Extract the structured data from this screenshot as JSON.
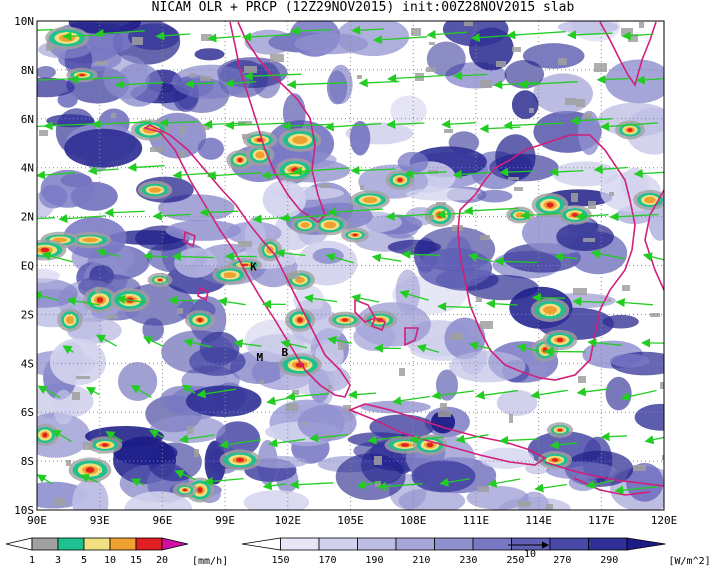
{
  "title": "NICAM OLR + PRCP (12Z29NOV2015) init:00Z28NOV2015 slab",
  "map": {
    "lat_labels": [
      "10N",
      "8N",
      "6N",
      "4N",
      "2N",
      "EQ",
      "2S",
      "4S",
      "6S",
      "8S",
      "10S"
    ],
    "lon_labels": [
      "90E",
      "93E",
      "96E",
      "99E",
      "102E",
      "105E",
      "108E",
      "111E",
      "114E",
      "117E",
      "120E"
    ],
    "lon_range": [
      90,
      120
    ],
    "lat_range": [
      -10,
      10
    ],
    "grid": "dotted",
    "station_labels": [
      {
        "text": "K",
        "lon": 100.2,
        "lat": -0.2
      },
      {
        "text": "M",
        "lon": 100.5,
        "lat": -3.9
      },
      {
        "text": "B",
        "lon": 101.7,
        "lat": -3.7
      }
    ],
    "vector_ref_label": "10",
    "colors": {
      "coast": "#d0207a",
      "wind": "#22cc22",
      "olr_dark": "#1a1a8c",
      "grid": "#888888"
    }
  },
  "precip_bar": {
    "unit": "[mm/h]",
    "labels": [
      "1",
      "3",
      "5",
      "10",
      "15",
      "20"
    ],
    "colors": [
      "#ffffff",
      "#a0a0a0",
      "#20c090",
      "#f0e080",
      "#f0a030",
      "#e02020",
      "#d010a0"
    ]
  },
  "olr_bar": {
    "unit": "[W/m^2]",
    "labels": [
      "150",
      "170",
      "190",
      "210",
      "230",
      "250",
      "270",
      "290"
    ],
    "colors": [
      "#ffffff",
      "#e6e6f6",
      "#d2d2ee",
      "#bcbce4",
      "#a6a6da",
      "#9090cf",
      "#7878c4",
      "#6060b6",
      "#4848a6",
      "#303097",
      "#1c1c88"
    ]
  }
}
